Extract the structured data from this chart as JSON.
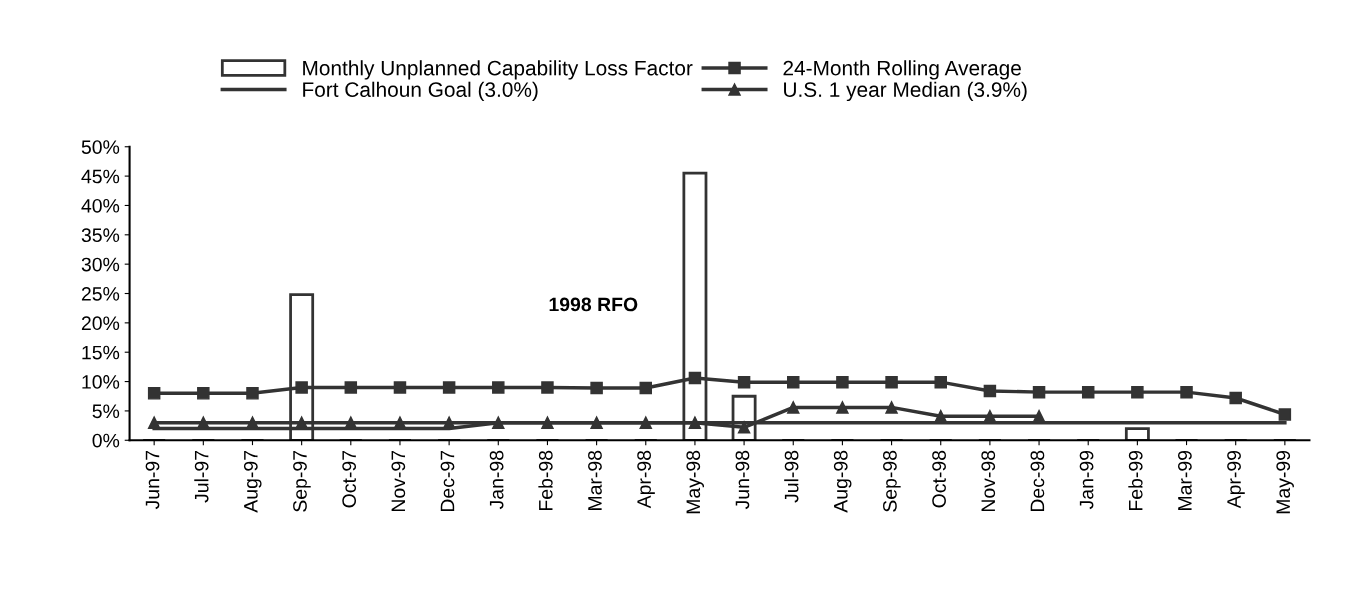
{
  "chart_data": {
    "type": "bar",
    "categories": [
      "Jun-97",
      "Jul-97",
      "Aug-97",
      "Sep-97",
      "Oct-97",
      "Nov-97",
      "Dec-97",
      "Jan-98",
      "Feb-98",
      "Mar-98",
      "Apr-98",
      "May-98",
      "Jun-98",
      "Jul-98",
      "Aug-98",
      "Sep-98",
      "Oct-98",
      "Nov-98",
      "Dec-98",
      "Jan-99",
      "Feb-99",
      "Mar-99",
      "Apr-99",
      "May-99"
    ],
    "series": [
      {
        "name": "Monthly Unplanned Capability Loss Factor",
        "color": "#333333",
        "values": [
          0,
          0,
          0,
          24.8,
          0,
          0,
          0,
          0,
          0,
          0,
          0,
          45.5,
          7.5,
          0,
          0,
          0,
          0,
          0,
          0,
          0,
          2,
          0,
          0,
          0
        ]
      },
      {
        "name": "24-Month Rolling Average",
        "type": "line",
        "marker": "square",
        "color": "#333333",
        "values": [
          8,
          8,
          8,
          9,
          9,
          9,
          9,
          9,
          9,
          8.9,
          8.9,
          10.6,
          9.9,
          9.9,
          9.9,
          9.9,
          9.9,
          8.4,
          8.2,
          8.2,
          8.2,
          8.2,
          7.2,
          4.4
        ]
      },
      {
        "name": "Fort Calhoun Goal (3.0%)",
        "type": "line",
        "marker": "none",
        "color": "#333333",
        "values": [
          2,
          2,
          2,
          2,
          2,
          2,
          2,
          3,
          3,
          3,
          3,
          3,
          3,
          3,
          3,
          3,
          3,
          3,
          3,
          3,
          3,
          3,
          3,
          3
        ]
      },
      {
        "name": "U.S. 1 year Median (3.9%)",
        "type": "line",
        "marker": "triangle",
        "color": "#333333",
        "values": [
          3,
          3,
          3,
          3,
          3,
          3,
          3,
          3,
          3,
          3,
          3,
          3,
          2.2,
          5.6,
          5.6,
          5.6,
          4.1,
          4.1,
          4.1,
          null,
          null,
          null,
          null,
          null
        ]
      }
    ],
    "ylim": [
      0,
      50
    ],
    "yticks": [
      {
        "value": 0,
        "label": "0%"
      },
      {
        "value": 5,
        "label": "5%"
      },
      {
        "value": 10,
        "label": "10%"
      },
      {
        "value": 15,
        "label": "15%"
      },
      {
        "value": 20,
        "label": "20%"
      },
      {
        "value": 25,
        "label": "25%"
      },
      {
        "value": 30,
        "label": "30%"
      },
      {
        "value": 35,
        "label": "35%"
      },
      {
        "value": 40,
        "label": "40%"
      },
      {
        "value": 45,
        "label": "45%"
      },
      {
        "value": 50,
        "label": "50%"
      }
    ],
    "annotations": [
      "1998 RFO"
    ],
    "legend": "top",
    "grid": false
  }
}
